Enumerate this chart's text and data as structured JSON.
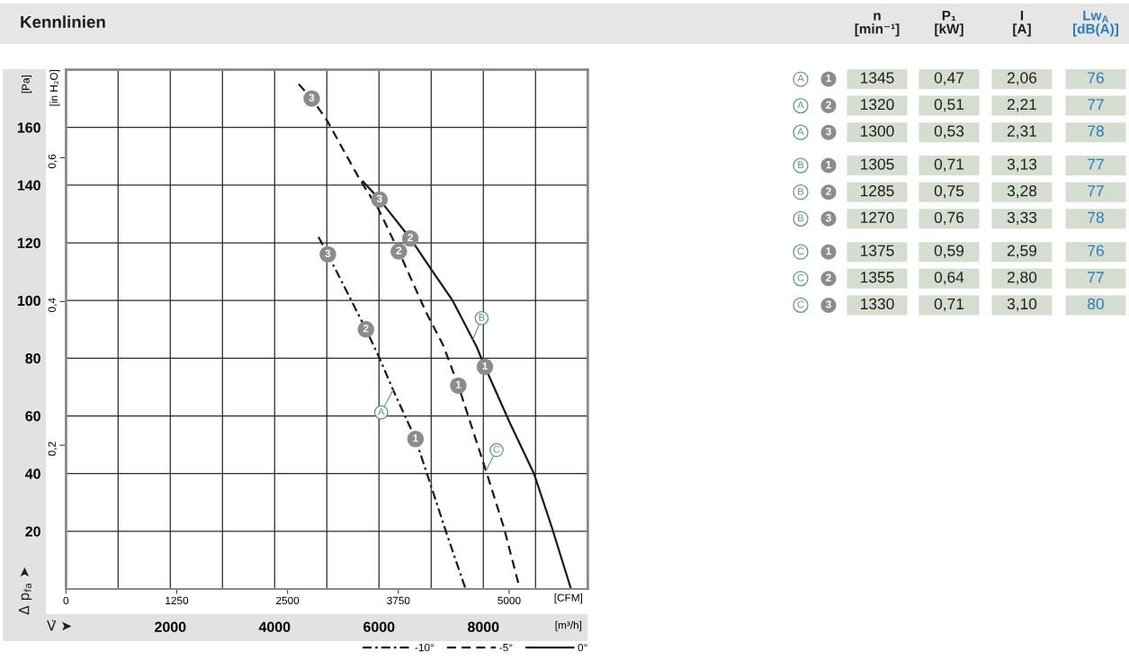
{
  "chart_data": [
    {
      "type": "line",
      "title": "Kennlinien",
      "xlabel": "[m³/h]",
      "x2label": "[CFM]",
      "ylabel": "[Pa]",
      "y2label": "[in H₂O]",
      "annotations": [
        "V̇ ➤",
        "Δ p$_{fa}$ ➤",
        {
          "text": "A",
          "x": 6270,
          "y": 69
        },
        {
          "text": "B",
          "x": 7800,
          "y": 86.5
        },
        {
          "text": "C",
          "x": 8050,
          "y": 41
        },
        {
          "text": "3",
          "x": 5020,
          "y": 116
        },
        {
          "text": "2",
          "x": 5750,
          "y": 90
        },
        {
          "text": "1",
          "x": 6700,
          "y": 52
        },
        {
          "text": "3",
          "x": 4710,
          "y": 170
        },
        {
          "text": "2",
          "x": 6380,
          "y": 117
        },
        {
          "text": "1",
          "x": 7520,
          "y": 70.5
        },
        {
          "text": "3",
          "x": 6010,
          "y": 135
        },
        {
          "text": "2",
          "x": 6600,
          "y": 121.5
        },
        {
          "text": "1",
          "x": 8030,
          "y": 77
        }
      ],
      "xlim": [
        0,
        10000
      ],
      "xticks": [
        {
          "value": 1000,
          "label": null
        },
        2000,
        {
          "value": 3000,
          "label": null
        },
        4000,
        {
          "value": 5000,
          "label": null
        },
        6000,
        {
          "value": 7000,
          "label": null
        },
        8000,
        {
          "value": 9000,
          "label": null
        }
      ],
      "x2lim": [
        0,
        5886
      ],
      "x2ticks": [
        0,
        1250,
        2500,
        3750,
        5000
      ],
      "ylim": [
        0,
        180
      ],
      "yticks": [
        20,
        40,
        60,
        80,
        100,
        120,
        140,
        160
      ],
      "y2lim": [
        0,
        0.7226
      ],
      "y2ticks": [
        {
          "value": 0.2,
          "label": "0,2"
        },
        {
          "value": 0.4,
          "label": "0,4"
        },
        {
          "value": 0.6,
          "label": "0,6"
        }
      ],
      "grid": true,
      "legend": "bottom right",
      "series": [
        {
          "name": "-10°",
          "type": "line",
          "line_style": "dashdot",
          "color": "#1a1a1a",
          "x": [
            4840,
            5020,
            5750,
            6010,
            6270,
            6700,
            7010,
            7300,
            7660
          ],
          "values": [
            122,
            116,
            90,
            80,
            69,
            52,
            35,
            19,
            0
          ]
        },
        {
          "name": "-5°",
          "type": "line",
          "line_style": "dashed",
          "color": "#1a1a1a",
          "x": [
            4460,
            4710,
            5000,
            5630,
            5980,
            6380,
            6900,
            7230,
            7520,
            8050,
            8390,
            8700
          ],
          "values": [
            175,
            170,
            162.5,
            142,
            132,
            117,
            96,
            84.5,
            70.5,
            41,
            21.5,
            0
          ]
        },
        {
          "name": "0°",
          "type": "line",
          "line_style": "solid",
          "color": "#1a1a1a",
          "x": [
            5680,
            6010,
            6600,
            7010,
            7410,
            7870,
            8030,
            8510,
            8970,
            9310,
            9680
          ],
          "values": [
            141.5,
            135,
            121.5,
            110.5,
            100,
            84,
            77,
            57.5,
            40,
            21.5,
            0
          ]
        },
        {
          "type": "scatter",
          "marker": "circle",
          "color": "#8c8c8c",
          "x": [
            5020,
            5750,
            6700,
            4710,
            6380,
            7520,
            6010,
            6600,
            8030
          ],
          "values": [
            116,
            90,
            52,
            170,
            117,
            70.5,
            135,
            121.5,
            77
          ]
        }
      ]
    },
    {
      "type": "other",
      "categories": [
        "n\n[min⁻¹]",
        "P₁\n[kW]",
        "I\n[A]",
        "Lw$_{A}$\n[dB(A)]"
      ],
      "y_categories": [
        "A",
        "A",
        "A",
        "B",
        "B",
        "B",
        "C",
        "C",
        "C"
      ],
      "y2_categories": [
        "1",
        "2",
        "3",
        "1",
        "2",
        "3",
        "1",
        "2",
        "3"
      ],
      "cell_labels": [
        [
          "1345",
          "0,47",
          "2,06",
          "76"
        ],
        [
          "1320",
          "0,51",
          "2,21",
          "77"
        ],
        [
          "1300",
          "0,53",
          "2,31",
          "78"
        ],
        [
          "1305",
          "0,71",
          "3,13",
          "77"
        ],
        [
          "1285",
          "0,75",
          "3,28",
          "77"
        ],
        [
          "1270",
          "0,76",
          "3,33",
          "78"
        ],
        [
          "1375",
          "0,59",
          "2,59",
          "76"
        ],
        [
          "1355",
          "0,64",
          "2,80",
          "77"
        ],
        [
          "1330",
          "0,71",
          "3,10",
          "80"
        ]
      ],
      "colors": [
        "#1f1f1f",
        "#1f1f1f",
        "#1f1f1f",
        "#2a7fb8"
      ],
      "color": "#d5dcd0"
    }
  ]
}
